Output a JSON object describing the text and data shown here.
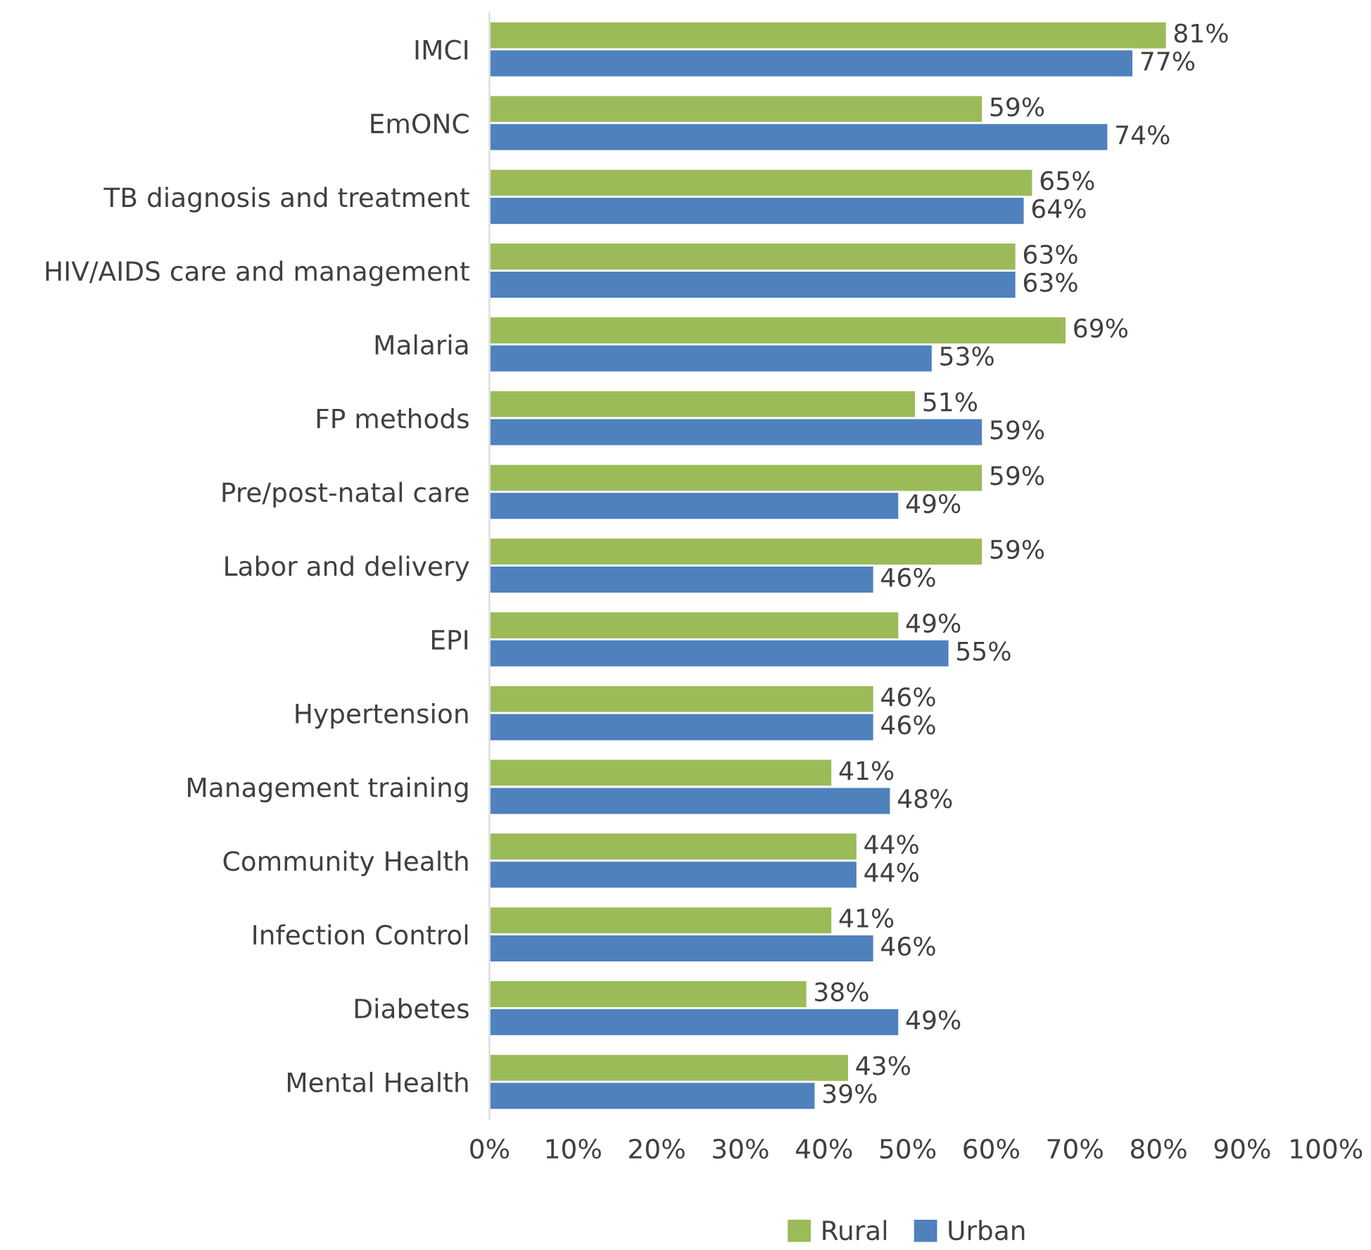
{
  "chart_data": {
    "type": "bar",
    "orientation": "horizontal",
    "categories": [
      "IMCI",
      "EmONC",
      "TB diagnosis and treatment",
      "HIV/AIDS care and management",
      "Malaria",
      "FP methods",
      "Pre/post-natal care",
      "Labor and delivery",
      "EPI",
      "Hypertension",
      "Management training",
      "Community Health",
      "Infection Control",
      "Diabetes",
      "Mental Health"
    ],
    "series": [
      {
        "name": "Rural",
        "color": "#9bbb59",
        "values": [
          81,
          59,
          65,
          63,
          69,
          51,
          59,
          59,
          49,
          46,
          41,
          44,
          41,
          38,
          43
        ],
        "value_labels": [
          "81%",
          "59%",
          "65%",
          "63%",
          "69%",
          "51%",
          "59%",
          "59%",
          "49%",
          "46%",
          "41%",
          "44%",
          "41%",
          "38%",
          "43%"
        ]
      },
      {
        "name": "Urban",
        "color": "#4f81bd",
        "values": [
          77,
          74,
          64,
          63,
          53,
          59,
          49,
          46,
          55,
          46,
          48,
          44,
          46,
          49,
          39
        ],
        "value_labels": [
          "77%",
          "74%",
          "64%",
          "63%",
          "53%",
          "59%",
          "49%",
          "46%",
          "55%",
          "46%",
          "48%",
          "44%",
          "46%",
          "49%",
          "39%"
        ]
      }
    ],
    "xlim": [
      0,
      100
    ],
    "xticks": [
      {
        "value": 0,
        "label": "0%"
      },
      {
        "value": 10,
        "label": "10%"
      },
      {
        "value": 20,
        "label": "20%"
      },
      {
        "value": 30,
        "label": "30%"
      },
      {
        "value": 40,
        "label": "40%"
      },
      {
        "value": 50,
        "label": "50%"
      },
      {
        "value": 60,
        "label": "60%"
      },
      {
        "value": 70,
        "label": "70%"
      },
      {
        "value": 80,
        "label": "80%"
      },
      {
        "value": 90,
        "label": "90%"
      },
      {
        "value": 100,
        "label": "100%"
      }
    ],
    "grid": false,
    "legend": "bottom"
  }
}
